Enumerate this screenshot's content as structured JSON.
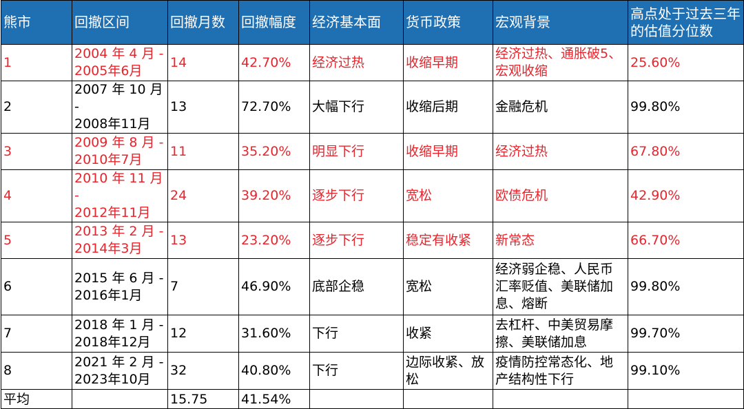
{
  "table": {
    "headers": [
      "熊市",
      "回撤区间",
      "回撤月数",
      "回撤幅度",
      "经济基本面",
      "货币政策",
      "宏观背景",
      "高点处于过去三年的估值分位数"
    ],
    "rows": [
      {
        "id": "1",
        "period_start": "2004 年 4 月 -",
        "period_end": "2005年6月",
        "months": "14",
        "drawdown": "42.70%",
        "economy": "经济过热",
        "monetary": "收缩早期",
        "macro": "经济过热、通胀破5、宏观收缩",
        "percentile": "25.60%",
        "highlight": true
      },
      {
        "id": "2",
        "period_start": "2007 年 10 月 -",
        "period_end": "2008年11月",
        "months": "13",
        "drawdown": "72.70%",
        "economy": "大幅下行",
        "monetary": "收缩后期",
        "macro": "金融危机",
        "percentile": "99.80%",
        "highlight": false
      },
      {
        "id": "3",
        "period_start": "2009 年 8 月 -",
        "period_end": "2010年7月",
        "months": "11",
        "drawdown": "35.20%",
        "economy": "明显下行",
        "monetary": "收缩早期",
        "macro": "经济过热",
        "percentile": "67.80%",
        "highlight": true
      },
      {
        "id": "4",
        "period_start": "2010 年 11 月 -",
        "period_end": "2012年11月",
        "months": "24",
        "drawdown": "39.20%",
        "economy": "逐步下行",
        "monetary": "宽松",
        "macro": "欧债危机",
        "percentile": "42.90%",
        "highlight": true
      },
      {
        "id": "5",
        "period_start": "2013 年 2 月 -",
        "period_end": "2014年3月",
        "months": "13",
        "drawdown": "23.20%",
        "economy": "逐步下行",
        "monetary": "稳定有收紧",
        "macro": "新常态",
        "percentile": "66.70%",
        "highlight": true
      },
      {
        "id": "6",
        "period_start": "2015 年 6 月 -",
        "period_end": "2016年1月",
        "months": "7",
        "drawdown": "46.90%",
        "economy": "底部企稳",
        "monetary": "宽松",
        "macro": "经济弱企稳、人民币汇率贬值、美联储加息、熔断",
        "percentile": "99.80%",
        "highlight": false
      },
      {
        "id": "7",
        "period_start": "2018 年 1 月 -",
        "period_end": "2018年12月",
        "months": "12",
        "drawdown": "31.60%",
        "economy": "下行",
        "monetary": "收紧",
        "macro": "去杠杆、中美贸易摩擦、美联储加息",
        "percentile": "99.70%",
        "highlight": false
      },
      {
        "id": "8",
        "period_start": "2021 年 2 月 -",
        "period_end": "2023年10月",
        "months": "32",
        "drawdown": "40.80%",
        "economy": "下行",
        "monetary": "边际收紧、放松",
        "macro": "疫情防控常态化、地产结构性下行",
        "percentile": "99.10%",
        "highlight": false
      }
    ],
    "average": {
      "label": "平均",
      "months": "15.75",
      "drawdown": "41.54%"
    },
    "colors": {
      "header_bg": "#1f6fb3",
      "header_text": "#ffffff",
      "highlight_text": "#e8242c",
      "border": "#000000"
    }
  }
}
